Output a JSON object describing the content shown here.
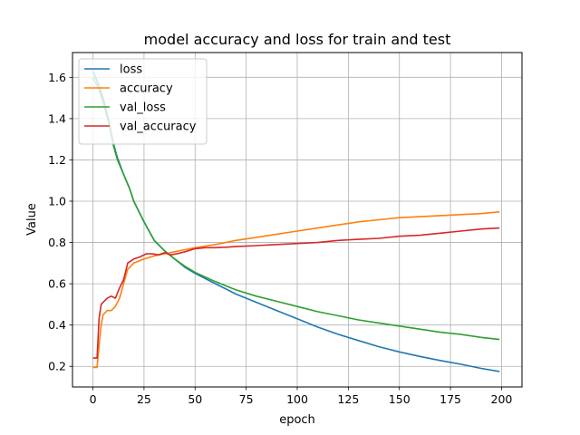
{
  "chart_data": {
    "type": "line",
    "title": "model accuracy and loss for train and test",
    "xlabel": "epoch",
    "ylabel": "Value",
    "xlim": [
      -10,
      210
    ],
    "ylim": [
      0.1,
      1.72
    ],
    "xticks": [
      0,
      25,
      50,
      75,
      100,
      125,
      150,
      175,
      200
    ],
    "yticks": [
      0.2,
      0.4,
      0.6,
      0.8,
      1.0,
      1.2,
      1.4,
      1.6
    ],
    "ytick_labels": [
      "0.2",
      "0.4",
      "0.6",
      "0.8",
      "1.0",
      "1.2",
      "1.4",
      "1.6"
    ],
    "grid": true,
    "legend_position": "top-left",
    "series": [
      {
        "name": "loss",
        "color": "#1f77b4",
        "x": [
          0,
          3,
          5,
          8,
          10,
          12,
          15,
          18,
          20,
          25,
          30,
          35,
          40,
          45,
          50,
          60,
          70,
          80,
          90,
          100,
          110,
          120,
          130,
          140,
          150,
          160,
          170,
          180,
          190,
          199
        ],
        "y": [
          1.63,
          1.56,
          1.5,
          1.38,
          1.28,
          1.21,
          1.13,
          1.06,
          1.0,
          0.9,
          0.81,
          0.76,
          0.72,
          0.68,
          0.65,
          0.6,
          0.55,
          0.51,
          0.47,
          0.43,
          0.39,
          0.355,
          0.325,
          0.295,
          0.27,
          0.248,
          0.228,
          0.21,
          0.19,
          0.175
        ]
      },
      {
        "name": "accuracy",
        "color": "#ff7f0e",
        "x": [
          0,
          2,
          3,
          4,
          5,
          7,
          9,
          11,
          13,
          15,
          17,
          20,
          25,
          30,
          35,
          40,
          45,
          50,
          60,
          70,
          80,
          90,
          100,
          110,
          120,
          130,
          140,
          150,
          160,
          170,
          180,
          190,
          199
        ],
        "y": [
          0.195,
          0.195,
          0.3,
          0.4,
          0.45,
          0.47,
          0.47,
          0.49,
          0.53,
          0.6,
          0.67,
          0.7,
          0.72,
          0.735,
          0.745,
          0.755,
          0.765,
          0.775,
          0.79,
          0.81,
          0.825,
          0.84,
          0.855,
          0.87,
          0.885,
          0.9,
          0.91,
          0.92,
          0.925,
          0.93,
          0.935,
          0.94,
          0.948
        ]
      },
      {
        "name": "val_loss",
        "color": "#2ca02c",
        "x": [
          0,
          3,
          5,
          8,
          10,
          12,
          15,
          18,
          20,
          25,
          30,
          35,
          40,
          45,
          50,
          60,
          70,
          80,
          90,
          100,
          110,
          120,
          130,
          140,
          150,
          160,
          170,
          180,
          190,
          199
        ],
        "y": [
          1.6,
          1.54,
          1.48,
          1.37,
          1.27,
          1.2,
          1.13,
          1.06,
          1.0,
          0.9,
          0.81,
          0.76,
          0.72,
          0.685,
          0.655,
          0.61,
          0.57,
          0.54,
          0.515,
          0.49,
          0.465,
          0.445,
          0.425,
          0.41,
          0.395,
          0.38,
          0.365,
          0.355,
          0.34,
          0.33
        ]
      },
      {
        "name": "val_accuracy",
        "color": "#d62728",
        "x": [
          0,
          2,
          3,
          4,
          5,
          7,
          9,
          11,
          13,
          15,
          17,
          20,
          23,
          26,
          29,
          32,
          35,
          38,
          41,
          45,
          50,
          55,
          60,
          70,
          80,
          90,
          100,
          110,
          120,
          130,
          140,
          150,
          160,
          170,
          180,
          190,
          199
        ],
        "y": [
          0.24,
          0.24,
          0.43,
          0.5,
          0.51,
          0.53,
          0.54,
          0.53,
          0.58,
          0.62,
          0.7,
          0.72,
          0.73,
          0.745,
          0.745,
          0.74,
          0.75,
          0.74,
          0.745,
          0.755,
          0.77,
          0.775,
          0.775,
          0.78,
          0.785,
          0.79,
          0.795,
          0.8,
          0.81,
          0.815,
          0.82,
          0.83,
          0.835,
          0.845,
          0.855,
          0.865,
          0.87
        ]
      }
    ]
  }
}
